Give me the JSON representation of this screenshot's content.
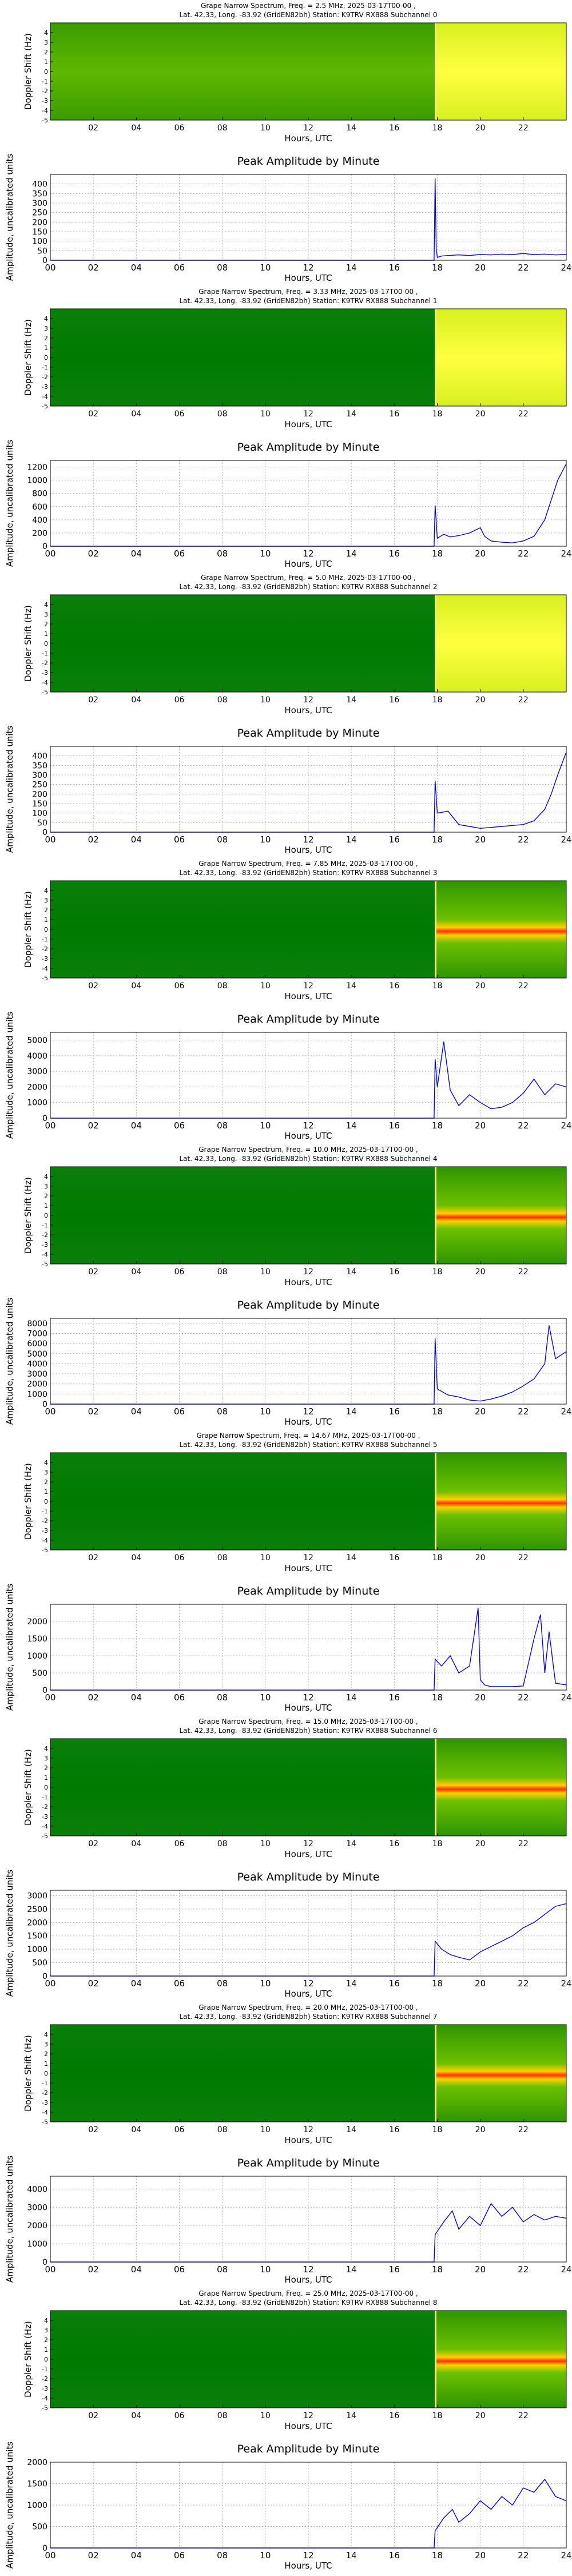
{
  "common": {
    "spec_ylabel": "Doppler Shift (Hz)",
    "amp_title": "Peak Amplitude by Minute",
    "amp_ylabel": "Amplitude, uncalibrated units",
    "xlabel": "Hours, UTC",
    "spec_xticks": [
      "02",
      "04",
      "06",
      "08",
      "10",
      "12",
      "14",
      "16",
      "18",
      "20",
      "22"
    ],
    "amp_xticks": [
      "00",
      "02",
      "04",
      "06",
      "08",
      "10",
      "12",
      "14",
      "16",
      "18",
      "20",
      "22",
      "24"
    ],
    "spec_yticks": [
      "-5",
      "-4",
      "-3",
      "-2",
      "-1",
      "0",
      "1",
      "2",
      "3",
      "4"
    ],
    "colors": {
      "line": "#0000ff",
      "grid": "#b0b0b0",
      "spec_low": "#007a00",
      "spec_mid": "#5fb800",
      "spec_high": "#ffff40",
      "spec_peak": "#ff3000"
    }
  },
  "chart_data": [
    {
      "type": "heatmap",
      "title_line1": "Grape Narrow Spectrum, Freq. = 2.5 MHz, 2025-03-17T00-00 ,",
      "title_line2": "Lat.  42.33, Long. -83.92 (GridEN82bh) Station: K9TRV RX888 Subchannel 0",
      "xlabel": "Hours, UTC",
      "ylabel": "Doppler Shift (Hz)",
      "xlim": [
        0,
        24
      ],
      "ylim": [
        -5,
        5
      ],
      "description_levels": [
        {
          "from": 0,
          "to": 17.9,
          "level": "mid"
        },
        {
          "from": 17.9,
          "to": 24,
          "level": "high"
        }
      ]
    },
    {
      "type": "line",
      "title": "Peak Amplitude by Minute",
      "xlabel": "Hours, UTC",
      "ylabel": "Amplitude, uncalibrated units",
      "xlim": [
        0,
        24
      ],
      "ylim": [
        0,
        450
      ],
      "yticks": [
        0,
        50,
        100,
        150,
        200,
        250,
        300,
        350,
        400
      ],
      "grid": true,
      "x": [
        0,
        17.85,
        17.9,
        17.95,
        18.0,
        18.2,
        18.5,
        19,
        19.5,
        20,
        20.5,
        21,
        21.5,
        22,
        22.5,
        23,
        23.5,
        24
      ],
      "y": [
        0,
        0,
        430,
        60,
        15,
        22,
        25,
        28,
        25,
        30,
        28,
        32,
        30,
        35,
        30,
        32,
        28,
        30
      ]
    },
    {
      "type": "heatmap",
      "title_line1": "Grape Narrow Spectrum, Freq. = 3.33 MHz, 2025-03-17T00-00 ,",
      "title_line2": "Lat.  42.33, Long. -83.92 (GridEN82bh) Station: K9TRV RX888 Subchannel 1",
      "xlabel": "Hours, UTC",
      "ylabel": "Doppler Shift (Hz)",
      "xlim": [
        0,
        24
      ],
      "ylim": [
        -5,
        5
      ],
      "description_levels": [
        {
          "from": 0,
          "to": 17.9,
          "level": "low"
        },
        {
          "from": 17.9,
          "to": 24,
          "level": "high"
        }
      ]
    },
    {
      "type": "line",
      "title": "Peak Amplitude by Minute",
      "xlabel": "Hours, UTC",
      "ylabel": "Amplitude, uncalibrated units",
      "xlim": [
        0,
        24
      ],
      "ylim": [
        0,
        1300
      ],
      "yticks": [
        0,
        200,
        400,
        600,
        800,
        1000,
        1200
      ],
      "grid": true,
      "x": [
        0,
        17.85,
        17.9,
        18.0,
        18.3,
        18.6,
        19,
        19.5,
        20,
        20.2,
        20.5,
        21,
        21.5,
        22,
        22.5,
        23,
        23.3,
        23.6,
        24
      ],
      "y": [
        0,
        0,
        620,
        120,
        180,
        140,
        160,
        200,
        280,
        150,
        80,
        60,
        50,
        80,
        150,
        400,
        700,
        1000,
        1250
      ]
    },
    {
      "type": "heatmap",
      "title_line1": "Grape Narrow Spectrum, Freq. = 5.0 MHz, 2025-03-17T00-00 ,",
      "title_line2": "Lat.  42.33, Long. -83.92 (GridEN82bh) Station: K9TRV RX888 Subchannel 2",
      "xlabel": "Hours, UTC",
      "ylabel": "Doppler Shift (Hz)",
      "xlim": [
        0,
        24
      ],
      "ylim": [
        -5,
        5
      ],
      "description_levels": [
        {
          "from": 0,
          "to": 17.9,
          "level": "low"
        },
        {
          "from": 17.9,
          "to": 24,
          "level": "high"
        }
      ]
    },
    {
      "type": "line",
      "title": "Peak Amplitude by Minute",
      "xlabel": "Hours, UTC",
      "ylabel": "Amplitude, uncalibrated units",
      "xlim": [
        0,
        24
      ],
      "ylim": [
        0,
        450
      ],
      "yticks": [
        0,
        50,
        100,
        150,
        200,
        250,
        300,
        350,
        400
      ],
      "grid": true,
      "x": [
        0,
        17.85,
        17.9,
        18.0,
        18.5,
        19,
        19.5,
        20,
        20.5,
        21,
        21.5,
        22,
        22.5,
        23,
        23.3,
        23.6,
        24
      ],
      "y": [
        0,
        0,
        270,
        100,
        110,
        40,
        30,
        20,
        25,
        30,
        35,
        40,
        60,
        120,
        200,
        300,
        420
      ]
    },
    {
      "type": "heatmap",
      "title_line1": "Grape Narrow Spectrum, Freq. = 7.85 MHz, 2025-03-17T00-00 ,",
      "title_line2": "Lat.  42.33, Long. -83.92 (GridEN82bh) Station: K9TRV RX888 Subchannel 3",
      "xlabel": "Hours, UTC",
      "ylabel": "Doppler Shift (Hz)",
      "xlim": [
        0,
        24
      ],
      "ylim": [
        -5,
        5
      ],
      "description_levels": [
        {
          "from": 0,
          "to": 17.9,
          "level": "low"
        },
        {
          "from": 17.9,
          "to": 24,
          "level": "band"
        }
      ]
    },
    {
      "type": "line",
      "title": "Peak Amplitude by Minute",
      "xlabel": "Hours, UTC",
      "ylabel": "Amplitude, uncalibrated units",
      "xlim": [
        0,
        24
      ],
      "ylim": [
        0,
        5500
      ],
      "yticks": [
        0,
        1000,
        2000,
        3000,
        4000,
        5000
      ],
      "grid": true,
      "x": [
        0,
        17.85,
        17.9,
        18.0,
        18.3,
        18.6,
        19.0,
        19.5,
        20.0,
        20.5,
        21.0,
        21.5,
        22.0,
        22.5,
        23.0,
        23.5,
        24
      ],
      "y": [
        0,
        0,
        3800,
        2000,
        4900,
        1800,
        800,
        1500,
        1000,
        600,
        700,
        1000,
        1600,
        2500,
        1500,
        2200,
        2000
      ]
    },
    {
      "type": "heatmap",
      "title_line1": "Grape Narrow Spectrum, Freq. = 10.0 MHz, 2025-03-17T00-00 ,",
      "title_line2": "Lat.  42.33, Long. -83.92 (GridEN82bh) Station: K9TRV RX888 Subchannel 4",
      "xlabel": "Hours, UTC",
      "ylabel": "Doppler Shift (Hz)",
      "xlim": [
        0,
        24
      ],
      "ylim": [
        -5,
        5
      ],
      "description_levels": [
        {
          "from": 0,
          "to": 17.9,
          "level": "low"
        },
        {
          "from": 17.9,
          "to": 24,
          "level": "band"
        }
      ]
    },
    {
      "type": "line",
      "title": "Peak Amplitude by Minute",
      "xlabel": "Hours, UTC",
      "ylabel": "Amplitude, uncalibrated units",
      "xlim": [
        0,
        24
      ],
      "ylim": [
        0,
        8500
      ],
      "yticks": [
        0,
        1000,
        2000,
        3000,
        4000,
        5000,
        6000,
        7000,
        8000
      ],
      "grid": true,
      "x": [
        0,
        17.85,
        17.9,
        18.0,
        18.5,
        19.0,
        19.5,
        20.0,
        20.5,
        21.0,
        21.5,
        22.0,
        22.5,
        23.0,
        23.2,
        23.5,
        24
      ],
      "y": [
        0,
        0,
        6500,
        1500,
        900,
        700,
        400,
        300,
        500,
        800,
        1200,
        1800,
        2500,
        4000,
        7800,
        4500,
        5200
      ]
    },
    {
      "type": "heatmap",
      "title_line1": "Grape Narrow Spectrum, Freq. = 14.67 MHz, 2025-03-17T00-00 ,",
      "title_line2": "Lat.  42.33, Long. -83.92 (GridEN82bh) Station: K9TRV RX888 Subchannel 5",
      "xlabel": "Hours, UTC",
      "ylabel": "Doppler Shift (Hz)",
      "xlim": [
        0,
        24
      ],
      "ylim": [
        -5,
        5
      ],
      "description_levels": [
        {
          "from": 0,
          "to": 17.9,
          "level": "low"
        },
        {
          "from": 17.9,
          "to": 24,
          "level": "band"
        }
      ]
    },
    {
      "type": "line",
      "title": "Peak Amplitude by Minute",
      "xlabel": "Hours, UTC",
      "ylabel": "Amplitude, uncalibrated units",
      "xlim": [
        0,
        24
      ],
      "ylim": [
        0,
        2500
      ],
      "yticks": [
        0,
        500,
        1000,
        1500,
        2000
      ],
      "grid": true,
      "x": [
        0,
        17.85,
        17.9,
        18.2,
        18.6,
        19.0,
        19.5,
        19.9,
        20.0,
        20.2,
        20.5,
        21.0,
        21.5,
        22.0,
        22.5,
        22.8,
        23.0,
        23.2,
        23.5,
        24
      ],
      "y": [
        0,
        0,
        900,
        700,
        1000,
        500,
        700,
        2400,
        300,
        150,
        100,
        100,
        100,
        120,
        1500,
        2200,
        500,
        1700,
        200,
        150
      ]
    },
    {
      "type": "heatmap",
      "title_line1": "Grape Narrow Spectrum, Freq. = 15.0 MHz, 2025-03-17T00-00 ,",
      "title_line2": "Lat.  42.33, Long. -83.92 (GridEN82bh) Station: K9TRV RX888 Subchannel 6",
      "xlabel": "Hours, UTC",
      "ylabel": "Doppler Shift (Hz)",
      "xlim": [
        0,
        24
      ],
      "ylim": [
        -5,
        5
      ],
      "description_levels": [
        {
          "from": 0,
          "to": 17.9,
          "level": "low"
        },
        {
          "from": 17.9,
          "to": 24,
          "level": "band"
        }
      ]
    },
    {
      "type": "line",
      "title": "Peak Amplitude by Minute",
      "xlabel": "Hours, UTC",
      "ylabel": "Amplitude, uncalibrated units",
      "xlim": [
        0,
        24
      ],
      "ylim": [
        0,
        3200
      ],
      "yticks": [
        0,
        500,
        1000,
        1500,
        2000,
        2500,
        3000
      ],
      "grid": true,
      "x": [
        0,
        17.85,
        17.9,
        18.2,
        18.6,
        19.0,
        19.5,
        20.0,
        20.5,
        21.0,
        21.5,
        22.0,
        22.5,
        23.0,
        23.5,
        24
      ],
      "y": [
        0,
        0,
        1300,
        1000,
        800,
        700,
        600,
        900,
        1100,
        1300,
        1500,
        1800,
        2000,
        2300,
        2600,
        2700
      ]
    },
    {
      "type": "heatmap",
      "title_line1": "Grape Narrow Spectrum, Freq. = 20.0 MHz, 2025-03-17T00-00 ,",
      "title_line2": "Lat.  42.33, Long. -83.92 (GridEN82bh) Station: K9TRV RX888 Subchannel 7",
      "xlabel": "Hours, UTC",
      "ylabel": "Doppler Shift (Hz)",
      "xlim": [
        0,
        24
      ],
      "ylim": [
        -5,
        5
      ],
      "description_levels": [
        {
          "from": 0,
          "to": 17.9,
          "level": "low"
        },
        {
          "from": 17.9,
          "to": 24,
          "level": "band"
        }
      ]
    },
    {
      "type": "line",
      "title": "Peak Amplitude by Minute",
      "xlabel": "Hours, UTC",
      "ylabel": "Amplitude, uncalibrated units",
      "xlim": [
        0,
        24
      ],
      "ylim": [
        0,
        4700
      ],
      "yticks": [
        0,
        1000,
        2000,
        3000,
        4000
      ],
      "grid": true,
      "x": [
        0,
        17.85,
        17.9,
        18.3,
        18.7,
        19.0,
        19.5,
        20.0,
        20.5,
        21.0,
        21.5,
        22.0,
        22.5,
        23.0,
        23.5,
        24
      ],
      "y": [
        0,
        0,
        1500,
        2200,
        2800,
        1800,
        2500,
        2000,
        3200,
        2500,
        3000,
        2200,
        2600,
        2300,
        2500,
        2400
      ]
    },
    {
      "type": "heatmap",
      "title_line1": "Grape Narrow Spectrum, Freq. = 25.0 MHz, 2025-03-17T00-00 ,",
      "title_line2": "Lat.  42.33, Long. -83.92 (GridEN82bh) Station: K9TRV RX888 Subchannel 8",
      "xlabel": "Hours, UTC",
      "ylabel": "Doppler Shift (Hz)",
      "xlim": [
        0,
        24
      ],
      "ylim": [
        -5,
        5
      ],
      "description_levels": [
        {
          "from": 0,
          "to": 17.9,
          "level": "low"
        },
        {
          "from": 17.9,
          "to": 24,
          "level": "band"
        }
      ]
    },
    {
      "type": "line",
      "title": "Peak Amplitude by Minute",
      "xlabel": "Hours, UTC",
      "ylabel": "Amplitude, uncalibrated units",
      "xlim": [
        0,
        24
      ],
      "ylim": [
        0,
        2000
      ],
      "yticks": [
        0,
        500,
        1000,
        1500,
        2000
      ],
      "grid": true,
      "x": [
        0,
        17.85,
        17.9,
        18.3,
        18.7,
        19.0,
        19.5,
        20.0,
        20.5,
        21.0,
        21.5,
        22.0,
        22.5,
        23.0,
        23.5,
        24
      ],
      "y": [
        0,
        0,
        400,
        700,
        900,
        600,
        800,
        1100,
        900,
        1200,
        1000,
        1400,
        1300,
        1600,
        1200,
        1100
      ]
    }
  ]
}
